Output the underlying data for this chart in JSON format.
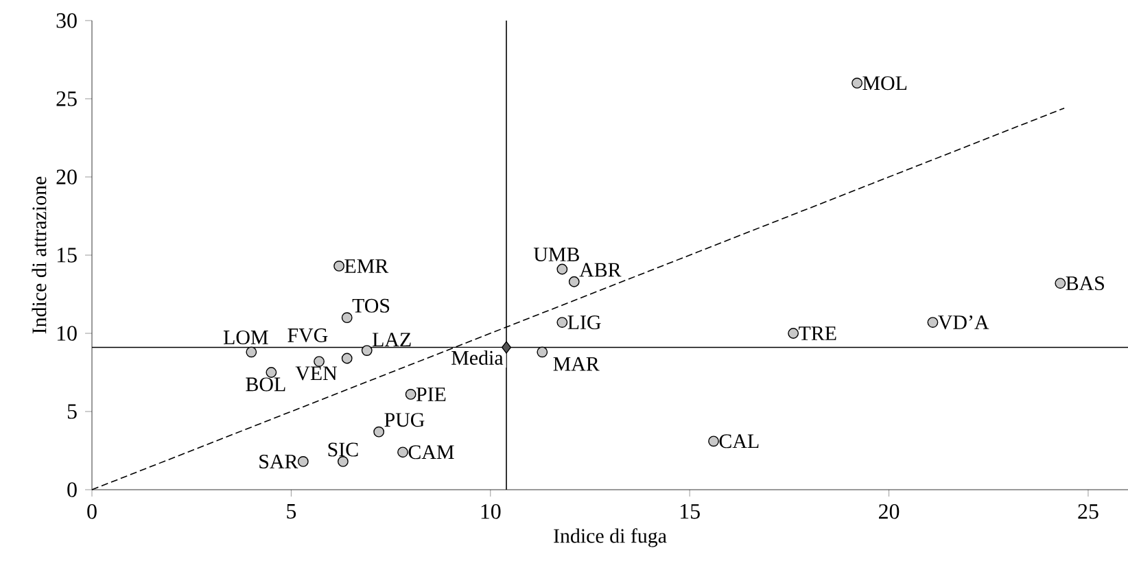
{
  "chart_data": {
    "type": "scatter",
    "xlabel": "Indice di fuga",
    "ylabel": "Indice di attrazione",
    "xlim": [
      0,
      26
    ],
    "ylim": [
      0,
      30
    ],
    "xticks": [
      0,
      5,
      10,
      15,
      20,
      25
    ],
    "yticks": [
      0,
      5,
      10,
      15,
      20,
      25,
      30
    ],
    "series": [
      {
        "marker": "circle",
        "color": "#c8c8c8",
        "x": [
          19.2,
          24.3,
          21.1,
          17.6,
          15.6,
          11.8,
          11.8,
          12.1,
          11.3,
          6.2,
          6.4,
          6.9,
          6.4,
          5.7,
          4.0,
          4.5,
          8.0,
          7.2,
          7.8,
          6.3,
          5.3
        ],
        "values": [
          26.0,
          13.2,
          10.7,
          10.0,
          3.1,
          10.7,
          14.1,
          13.3,
          8.8,
          14.3,
          11.0,
          8.9,
          8.4,
          8.2,
          8.8,
          7.5,
          6.1,
          3.7,
          2.4,
          1.8,
          1.8
        ]
      },
      {
        "type": "scatter",
        "name": "Media",
        "marker": "diamond",
        "color": "#555555",
        "x": [
          10.4
        ],
        "values": [
          9.1
        ]
      },
      {
        "type": "line",
        "line_style": "dashed",
        "color": "#000000",
        "x": [
          0,
          24.4
        ],
        "values": [
          0,
          24.4
        ]
      }
    ],
    "ref_lines": [
      {
        "axis": "x",
        "value": 10.4,
        "color": "#000000"
      },
      {
        "axis": "y",
        "value": 9.1,
        "color": "#000000"
      }
    ],
    "annotations": [
      {
        "text": "MOL",
        "x": 19.2,
        "y": 26.0
      },
      {
        "text": "BAS",
        "x": 24.3,
        "y": 13.2
      },
      {
        "text": "VD’A",
        "x": 21.1,
        "y": 10.7
      },
      {
        "text": "TRE",
        "x": 17.6,
        "y": 10.0
      },
      {
        "text": "CAL",
        "x": 15.6,
        "y": 3.1
      },
      {
        "text": "LIG",
        "x": 11.8,
        "y": 10.7
      },
      {
        "text": "UMB",
        "x": 11.8,
        "y": 14.1
      },
      {
        "text": "ABR",
        "x": 12.1,
        "y": 13.3
      },
      {
        "text": "MAR",
        "x": 11.3,
        "y": 8.8
      },
      {
        "text": "EMR",
        "x": 6.2,
        "y": 14.3
      },
      {
        "text": "TOS",
        "x": 6.4,
        "y": 11.0
      },
      {
        "text": "LAZ",
        "x": 6.9,
        "y": 8.9
      },
      {
        "text": "FVG",
        "x": 6.4,
        "y": 8.4
      },
      {
        "text": "VEN",
        "x": 5.7,
        "y": 8.2
      },
      {
        "text": "LOM",
        "x": 4.0,
        "y": 8.8
      },
      {
        "text": "BOL",
        "x": 4.5,
        "y": 7.5
      },
      {
        "text": "PIE",
        "x": 8.0,
        "y": 6.1
      },
      {
        "text": "PUG",
        "x": 7.2,
        "y": 3.7
      },
      {
        "text": "CAM",
        "x": 7.8,
        "y": 2.4
      },
      {
        "text": "SIC",
        "x": 6.3,
        "y": 1.8
      },
      {
        "text": "SAR",
        "x": 5.3,
        "y": 1.8
      }
    ]
  }
}
